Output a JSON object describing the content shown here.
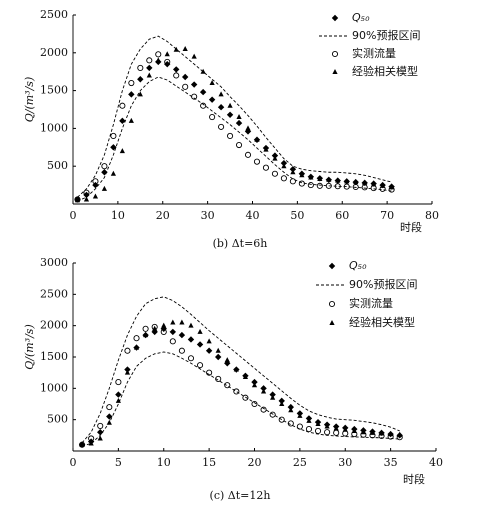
{
  "chart_data": [
    {
      "type": "line",
      "caption": "(b) Δt=6h",
      "x_label": "时段",
      "y_label": "Q/(m³/s)",
      "xlim": [
        0,
        80
      ],
      "xticks": [
        0,
        10,
        20,
        30,
        40,
        50,
        60,
        70,
        80
      ],
      "ylim": [
        0,
        2500
      ],
      "yticks": [
        500,
        1000,
        1500,
        2000,
        2500
      ],
      "x": [
        1,
        3,
        5,
        7,
        9,
        11,
        13,
        15,
        17,
        19,
        21,
        23,
        25,
        27,
        29,
        31,
        33,
        35,
        37,
        39,
        41,
        43,
        45,
        47,
        49,
        51,
        53,
        55,
        57,
        59,
        61,
        63,
        65,
        67,
        69,
        71
      ],
      "series": [
        {
          "name": "Q₅₀",
          "color": "#000000",
          "marker": "diamond",
          "values": [
            60,
            120,
            250,
            420,
            750,
            1100,
            1450,
            1650,
            1800,
            1880,
            1850,
            1780,
            1680,
            1580,
            1480,
            1380,
            1280,
            1180,
            1070,
            960,
            850,
            740,
            640,
            540,
            460,
            400,
            360,
            340,
            320,
            310,
            300,
            290,
            280,
            270,
            250,
            230
          ]
        },
        {
          "name": "实测流量",
          "color": "#000000",
          "marker": "circle",
          "values": [
            60,
            150,
            300,
            500,
            900,
            1300,
            1600,
            1800,
            1900,
            1980,
            1880,
            1700,
            1550,
            1420,
            1300,
            1150,
            1020,
            900,
            780,
            650,
            560,
            480,
            400,
            340,
            300,
            270,
            250,
            240,
            240,
            235,
            230,
            225,
            220,
            210,
            200,
            190
          ]
        },
        {
          "name": "经验相关模型",
          "color": "#000000",
          "marker": "triangle",
          "values": [
            50,
            60,
            100,
            200,
            400,
            700,
            1100,
            1450,
            1700,
            1900,
            1980,
            2040,
            2050,
            1950,
            1750,
            1600,
            1450,
            1300,
            1150,
            1000,
            850,
            720,
            600,
            500,
            420,
            380,
            350,
            330,
            320,
            310,
            300,
            290,
            280,
            260,
            240,
            220
          ]
        }
      ],
      "interval": {
        "name": "90%预报区间",
        "color": "#000000",
        "upper": [
          90,
          200,
          380,
          650,
          1050,
          1500,
          1850,
          2050,
          2180,
          2220,
          2150,
          2050,
          1950,
          1850,
          1750,
          1650,
          1550,
          1420,
          1300,
          1170,
          1030,
          880,
          740,
          600,
          500,
          460,
          440,
          430,
          420,
          420,
          410,
          400,
          380,
          350,
          320,
          290
        ],
        "lower": [
          40,
          90,
          200,
          350,
          650,
          1000,
          1300,
          1500,
          1620,
          1680,
          1640,
          1560,
          1480,
          1400,
          1320,
          1230,
          1140,
          1050,
          950,
          850,
          740,
          630,
          520,
          420,
          330,
          280,
          260,
          250,
          240,
          235,
          230,
          220,
          210,
          200,
          190,
          170
        ]
      }
    },
    {
      "type": "line",
      "caption": "(c) Δt=12h",
      "x_label": "时段",
      "y_label": "Q/(m³/s)",
      "xlim": [
        0,
        40
      ],
      "xticks": [
        0,
        5,
        10,
        15,
        20,
        25,
        30,
        35,
        40
      ],
      "ylim": [
        0,
        3000
      ],
      "yticks": [
        500,
        1000,
        1500,
        2000,
        2500,
        3000
      ],
      "x": [
        1,
        2,
        3,
        4,
        5,
        6,
        7,
        8,
        9,
        10,
        11,
        12,
        13,
        14,
        15,
        16,
        17,
        18,
        19,
        20,
        21,
        22,
        23,
        24,
        25,
        26,
        27,
        28,
        29,
        30,
        31,
        32,
        33,
        34,
        35,
        36
      ],
      "series": [
        {
          "name": "Q₅₀",
          "color": "#000000",
          "marker": "diamond",
          "values": [
            100,
            150,
            300,
            550,
            900,
            1300,
            1650,
            1850,
            1900,
            1950,
            1900,
            1850,
            1780,
            1700,
            1600,
            1500,
            1400,
            1300,
            1200,
            1100,
            1000,
            900,
            800,
            700,
            600,
            520,
            460,
            420,
            390,
            370,
            350,
            330,
            310,
            290,
            270,
            250
          ]
        },
        {
          "name": "实测流量",
          "color": "#000000",
          "marker": "circle",
          "values": [
            100,
            200,
            400,
            700,
            1100,
            1600,
            1800,
            1950,
            1980,
            1900,
            1750,
            1600,
            1480,
            1370,
            1250,
            1150,
            1050,
            950,
            850,
            750,
            660,
            580,
            500,
            440,
            390,
            350,
            320,
            300,
            290,
            280,
            270,
            260,
            250,
            240,
            230,
            220
          ]
        },
        {
          "name": "经验相关模型",
          "color": "#000000",
          "marker": "triangle",
          "values": [
            100,
            120,
            200,
            450,
            800,
            1250,
            1650,
            1850,
            1950,
            2000,
            2050,
            2050,
            2000,
            1900,
            1750,
            1600,
            1450,
            1300,
            1180,
            1050,
            950,
            850,
            750,
            650,
            560,
            480,
            430,
            390,
            360,
            340,
            320,
            300,
            290,
            280,
            270,
            260
          ]
        }
      ],
      "interval": {
        "name": "90%预报区间",
        "color": "#000000",
        "upper": [
          130,
          300,
          600,
          1000,
          1450,
          1850,
          2150,
          2350,
          2430,
          2460,
          2400,
          2300,
          2180,
          2050,
          1920,
          1800,
          1680,
          1560,
          1440,
          1320,
          1200,
          1080,
          960,
          840,
          730,
          640,
          580,
          540,
          510,
          500,
          490,
          470,
          450,
          420,
          380,
          320
        ],
        "lower": [
          80,
          120,
          250,
          450,
          750,
          1100,
          1350,
          1480,
          1550,
          1580,
          1550,
          1480,
          1400,
          1310,
          1220,
          1130,
          1040,
          950,
          860,
          770,
          680,
          590,
          500,
          420,
          350,
          300,
          270,
          250,
          240,
          230,
          225,
          220,
          215,
          210,
          200,
          190
        ]
      }
    }
  ]
}
